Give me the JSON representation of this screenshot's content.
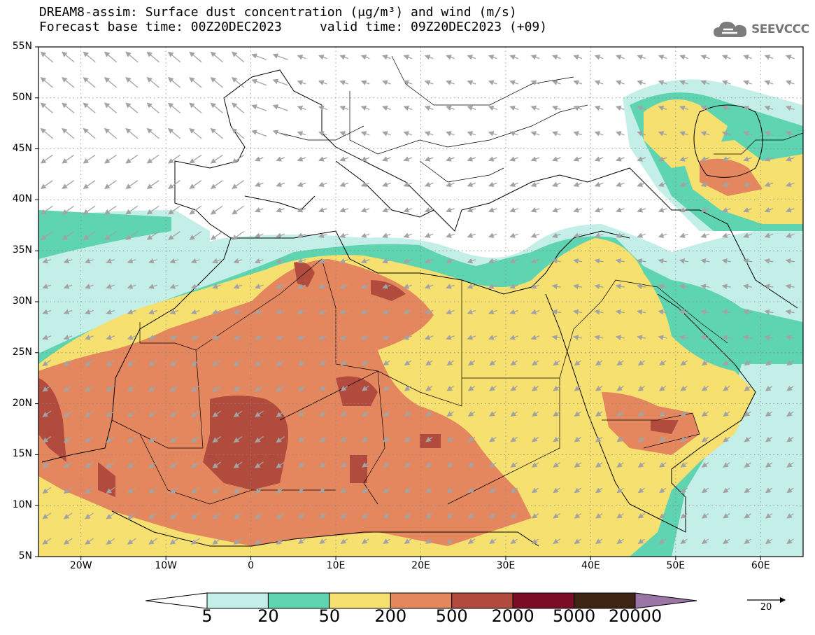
{
  "title_line1": "DREAM8-assim: Surface dust concentration (μg/m³) and wind (m/s)",
  "title_line2": "Forecast base time: 00Z20DEC2023     valid time: 09Z20DEC2023 (+09)",
  "logo": {
    "text": "SEEVCCC",
    "icon": "cloud-icon"
  },
  "map": {
    "lon_range": [
      -25,
      65
    ],
    "lat_range": [
      5,
      55
    ],
    "lat_ticks": [
      {
        "value": 55,
        "label": "55N"
      },
      {
        "value": 50,
        "label": "50N"
      },
      {
        "value": 45,
        "label": "45N"
      },
      {
        "value": 40,
        "label": "40N"
      },
      {
        "value": 35,
        "label": "35N"
      },
      {
        "value": 30,
        "label": "30N"
      },
      {
        "value": 25,
        "label": "25N"
      },
      {
        "value": 20,
        "label": "20N"
      },
      {
        "value": 15,
        "label": "15N"
      },
      {
        "value": 10,
        "label": "10N"
      },
      {
        "value": 5,
        "label": "5N"
      }
    ],
    "lon_ticks": [
      {
        "value": -20,
        "label": "20W"
      },
      {
        "value": -10,
        "label": "10W"
      },
      {
        "value": 0,
        "label": "0"
      },
      {
        "value": 10,
        "label": "10E"
      },
      {
        "value": 20,
        "label": "20E"
      },
      {
        "value": 30,
        "label": "30E"
      },
      {
        "value": 40,
        "label": "40E"
      },
      {
        "value": 50,
        "label": "50E"
      },
      {
        "value": 60,
        "label": "60E"
      }
    ],
    "grid": "dotted"
  },
  "colorbar": {
    "labels": [
      "5",
      "20",
      "50",
      "200",
      "500",
      "2000",
      "5000",
      "20000"
    ],
    "colors": [
      "#ffffff",
      "#c4efe8",
      "#5ed4b0",
      "#f5e070",
      "#e4875f",
      "#b14b3d",
      "#7a0e27",
      "#3e2413",
      "#9b75a6"
    ]
  },
  "wind_reference": {
    "label": "20"
  },
  "colors": {
    "land_outline": "#000000",
    "wind_arrow": "#a3a3a3",
    "grid": "#888888"
  }
}
